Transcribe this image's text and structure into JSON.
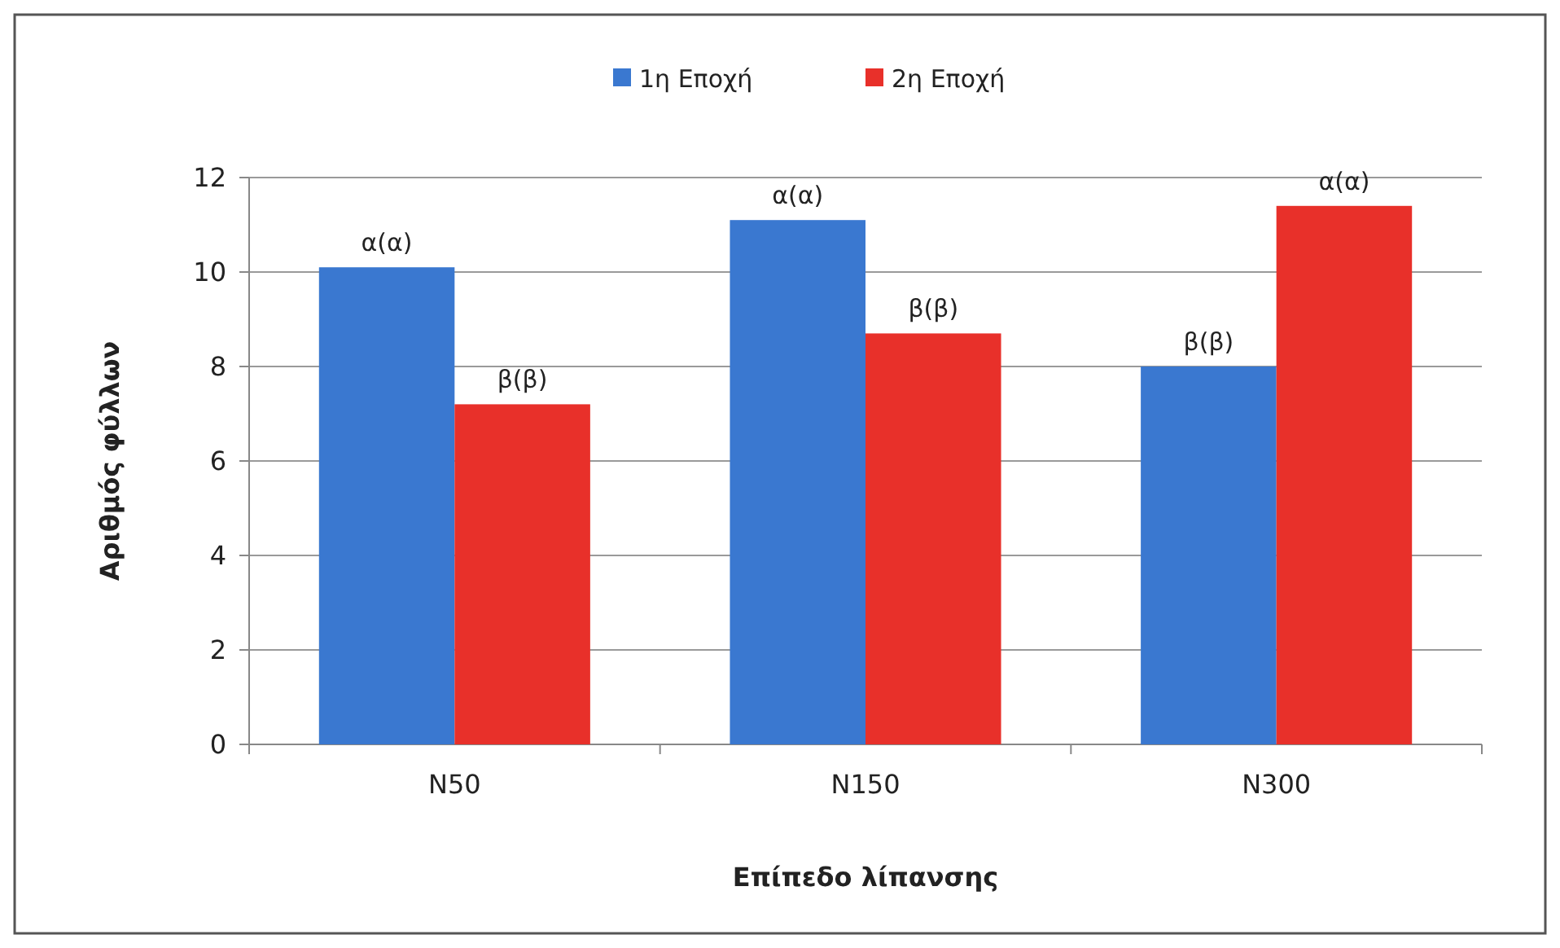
{
  "chart_data": {
    "type": "bar",
    "categories": [
      "N50",
      "N150",
      "N300"
    ],
    "series": [
      {
        "name": "1η Εποχή",
        "color": "#3a78d0",
        "values": [
          10.1,
          11.1,
          8.0
        ],
        "value_labels": [
          "α(α)",
          "α(α)",
          "β(β)"
        ]
      },
      {
        "name": "2η Εποχή",
        "color": "#e8302a",
        "values": [
          7.2,
          8.7,
          11.4
        ],
        "value_labels": [
          "β(β)",
          "β(β)",
          "α(α)"
        ]
      }
    ],
    "ylim": [
      0,
      12
    ],
    "yticks": [
      0,
      2,
      4,
      6,
      8,
      10,
      12
    ],
    "grid": "y",
    "legend": "top",
    "xlabel": "Επίπεδο λίπανσης",
    "ylabel": "Αριθμός φύλλων"
  }
}
